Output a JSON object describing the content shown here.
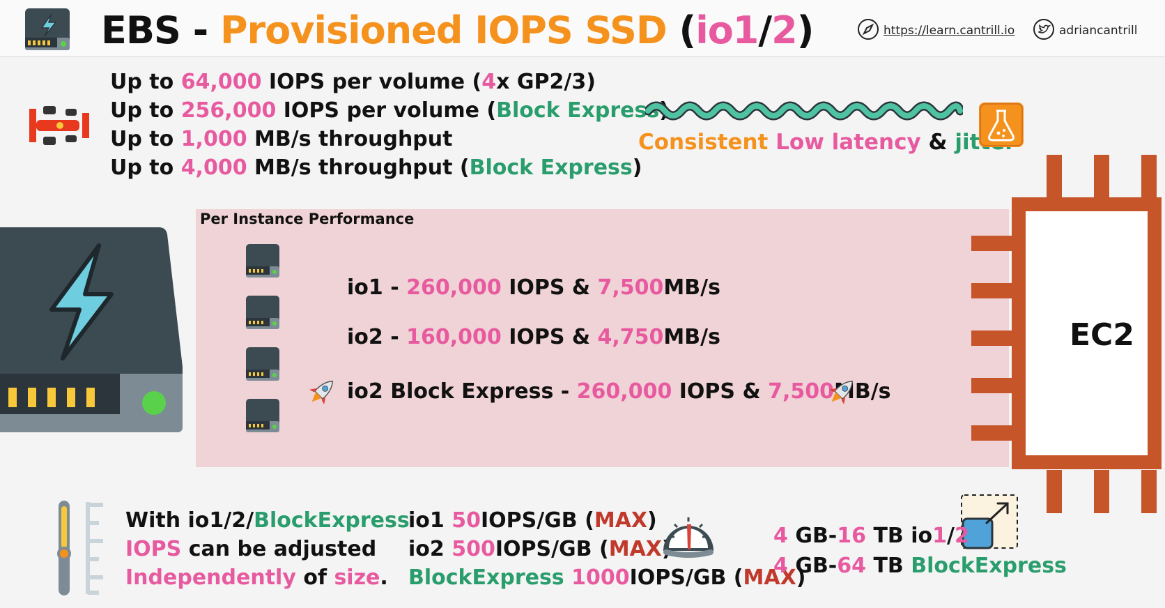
{
  "header": {
    "title": {
      "ebs": "EBS",
      "dash": " - ",
      "name": "Provisioned IOPS SSD",
      "open": " (",
      "io1": "io1",
      "slash": "/",
      "io2": "2",
      "close": ")"
    },
    "link": "https://learn.cantrill.io",
    "twitter": "adriancantrill"
  },
  "features": {
    "line1": {
      "a": "Up to ",
      "b": "64,000",
      "c": " IOPS per volume (",
      "d": "4",
      "e": "x GP2/3)"
    },
    "line2": {
      "a": "Up to ",
      "b": "256,000",
      "c": " IOPS per volume (",
      "d": "Block Express",
      "e": ")"
    },
    "line3": {
      "a": "Up to ",
      "b": "1,000",
      "c": " MB/s throughput"
    },
    "line4": {
      "a": "Up to ",
      "b": "4,000",
      "c": " MB/s throughput (",
      "d": "Block Express",
      "e": ")"
    }
  },
  "latency": {
    "a": "Consistent",
    "b": " Low latency",
    "c": " & ",
    "d": "jitter"
  },
  "performance": {
    "title": "Per Instance Performance",
    "rows": [
      {
        "name": "io1 - ",
        "iops": "260,000",
        "mid": " IOPS & ",
        "mbs": "7,500",
        "unit": "MB/s"
      },
      {
        "name": "io2 - ",
        "iops": "160,000",
        "mid": " IOPS & ",
        "mbs": "4,750",
        "unit": "MB/s"
      },
      {
        "name": "io2 Block Express - ",
        "iops": "260,000",
        "mid": " IOPS & ",
        "mbs": "7,500",
        "unit": "MB/s"
      }
    ]
  },
  "ec2": {
    "label": "EC2"
  },
  "adjust": {
    "l1a": "With io1/2/",
    "l1b": "BlockExpress",
    "l2a": "IOPS",
    "l2b": " can be adjusted",
    "l3a": "Independently",
    "l3b": " of ",
    "l3c": "size",
    "l3d": "."
  },
  "ratios": {
    "r1": {
      "a": "io1 ",
      "b": "50",
      "c": "IOPS/GB (",
      "d": "MAX",
      "e": ")"
    },
    "r2": {
      "a": "io2 ",
      "b": "500",
      "c": "IOPS/GB (",
      "d": "MAX",
      "e": ")"
    },
    "r3": {
      "a": "BlockExpress ",
      "b": "1000",
      "c": "IOPS/GB (",
      "d": "MAX",
      "e": ")"
    }
  },
  "sizes": {
    "s1": {
      "a": "4",
      "b": " GB-",
      "c": "16",
      "d": " TB io",
      "e": "1",
      "f": "/",
      "g": "2"
    },
    "s2": {
      "a": "4",
      "b": " GB-",
      "c": "64",
      "d": " TB ",
      "e": "BlockExpress"
    }
  },
  "colors": {
    "pink": "#e85a9f",
    "orange": "#f5921e",
    "green": "#2a9d6c",
    "red": "#c0392b",
    "chip": "#c65529",
    "panel": "#f0d3d6"
  },
  "icons": [
    "ebs-volume-icon",
    "compass-icon",
    "twitter-icon",
    "race-car-icon",
    "squiggle-line-icon",
    "flask-icon",
    "disk-icon",
    "rocket-icon",
    "ec2-chip-icon",
    "slider-icon",
    "gauge-icon",
    "resize-icon"
  ]
}
